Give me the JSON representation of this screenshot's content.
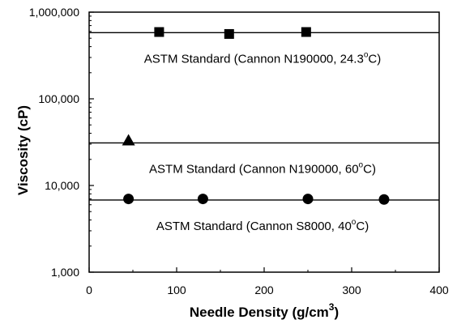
{
  "chart_data": {
    "type": "scatter",
    "xlabel": "Needle Density (g/cm",
    "xlabel_sup": "3",
    "xlabel_suffix": ")",
    "ylabel": "Viscosity (cP)",
    "xlim": [
      0,
      400
    ],
    "ylim": [
      1000,
      1000000
    ],
    "yscale": "log",
    "grid": false,
    "x_ticks": [
      0,
      100,
      200,
      300,
      400
    ],
    "x_tick_labels": [
      "0",
      "100",
      "200",
      "300",
      "400"
    ],
    "y_ticks": [
      1000,
      10000,
      100000,
      1000000
    ],
    "y_tick_labels": [
      "1,000",
      "10,000",
      "100,000",
      "1,000,000"
    ],
    "series": [
      {
        "marker": "square",
        "reference_line": 580000,
        "points": [
          {
            "x": 80,
            "y": 590000
          },
          {
            "x": 160,
            "y": 560000
          },
          {
            "x": 248,
            "y": 590000
          }
        ],
        "annotation": {
          "text": "ASTM Standard (Cannon N190000, 24.3",
          "sup": "o",
          "suffix": "C)"
        }
      },
      {
        "marker": "triangle",
        "reference_line": 31000,
        "points": [
          {
            "x": 45,
            "y": 33000
          }
        ],
        "annotation": {
          "text": "ASTM Standard (Cannon N190000, 60",
          "sup": "o",
          "suffix": "C)"
        }
      },
      {
        "marker": "circle",
        "reference_line": 6800,
        "points": [
          {
            "x": 45,
            "y": 7000
          },
          {
            "x": 130,
            "y": 7000
          },
          {
            "x": 250,
            "y": 7000
          },
          {
            "x": 337,
            "y": 6900
          }
        ],
        "annotation": {
          "text": "ASTM Standard (Cannon S8000, 40",
          "sup": "o",
          "suffix": "C)"
        }
      }
    ]
  }
}
